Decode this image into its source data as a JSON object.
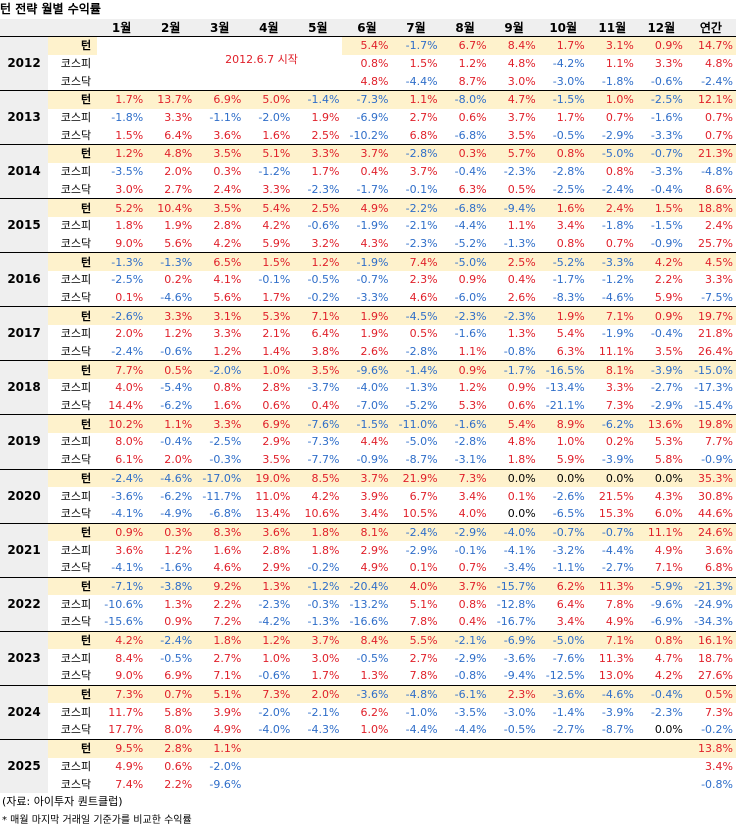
{
  "title": "턴 전략 월별 수익률",
  "headers": [
    "",
    "",
    "1월",
    "2월",
    "3월",
    "4월",
    "5월",
    "6월",
    "7월",
    "8월",
    "9월",
    "10월",
    "11월",
    "12월",
    "연간"
  ],
  "note": "2012.6.7 시작",
  "groups": [
    {
      "year": "2012",
      "rows": [
        {
          "label": "턴",
          "values": [
            "",
            "",
            "",
            "",
            "",
            "5.4%",
            "-1.7%",
            "6.7%",
            "8.4%",
            "1.7%",
            "3.1%",
            "0.9%",
            "14.7%"
          ]
        },
        {
          "label": "코스피",
          "values": [
            "",
            "",
            "",
            "",
            "",
            "0.8%",
            "1.5%",
            "1.2%",
            "4.8%",
            "-4.2%",
            "1.1%",
            "3.3%",
            "4.8%"
          ]
        },
        {
          "label": "코스닥",
          "values": [
            "",
            "",
            "",
            "",
            "",
            "4.8%",
            "-4.4%",
            "8.7%",
            "3.0%",
            "-3.0%",
            "-1.8%",
            "-0.6%",
            "-2.4%"
          ]
        }
      ]
    },
    {
      "year": "2013",
      "rows": [
        {
          "label": "턴",
          "values": [
            "1.7%",
            "13.7%",
            "6.9%",
            "5.0%",
            "-1.4%",
            "-7.3%",
            "1.1%",
            "-8.0%",
            "4.7%",
            "-1.5%",
            "1.0%",
            "-2.5%",
            "12.1%"
          ]
        },
        {
          "label": "코스피",
          "values": [
            "-1.8%",
            "3.3%",
            "-1.1%",
            "-2.0%",
            "1.9%",
            "-6.9%",
            "2.7%",
            "0.6%",
            "3.7%",
            "1.7%",
            "0.7%",
            "-1.6%",
            "0.7%"
          ]
        },
        {
          "label": "코스닥",
          "values": [
            "1.5%",
            "6.4%",
            "3.6%",
            "1.6%",
            "2.5%",
            "-10.2%",
            "6.8%",
            "-6.8%",
            "3.5%",
            "-0.5%",
            "-2.9%",
            "-3.3%",
            "0.7%"
          ]
        }
      ]
    },
    {
      "year": "2014",
      "rows": [
        {
          "label": "턴",
          "values": [
            "1.2%",
            "4.8%",
            "3.5%",
            "5.1%",
            "3.3%",
            "3.7%",
            "-2.8%",
            "0.3%",
            "5.7%",
            "0.8%",
            "-5.0%",
            "-0.7%",
            "21.3%"
          ]
        },
        {
          "label": "코스피",
          "values": [
            "-3.5%",
            "2.0%",
            "0.3%",
            "-1.2%",
            "1.7%",
            "0.4%",
            "3.7%",
            "-0.4%",
            "-2.3%",
            "-2.8%",
            "0.8%",
            "-3.3%",
            "-4.8%"
          ]
        },
        {
          "label": "코스닥",
          "values": [
            "3.0%",
            "2.7%",
            "2.4%",
            "3.3%",
            "-2.3%",
            "-1.7%",
            "-0.1%",
            "6.3%",
            "0.5%",
            "-2.5%",
            "-2.4%",
            "-0.4%",
            "8.6%"
          ]
        }
      ]
    },
    {
      "year": "2015",
      "rows": [
        {
          "label": "턴",
          "values": [
            "5.2%",
            "10.4%",
            "3.5%",
            "5.4%",
            "2.5%",
            "4.9%",
            "-2.2%",
            "-6.8%",
            "-9.4%",
            "1.6%",
            "2.4%",
            "1.5%",
            "18.8%"
          ]
        },
        {
          "label": "코스피",
          "values": [
            "1.8%",
            "1.9%",
            "2.8%",
            "4.2%",
            "-0.6%",
            "-1.9%",
            "-2.1%",
            "-4.4%",
            "1.1%",
            "3.4%",
            "-1.8%",
            "-1.5%",
            "2.4%"
          ]
        },
        {
          "label": "코스닥",
          "values": [
            "9.0%",
            "5.6%",
            "4.2%",
            "5.9%",
            "3.2%",
            "4.3%",
            "-2.3%",
            "-5.2%",
            "-1.3%",
            "0.8%",
            "0.7%",
            "-0.9%",
            "25.7%"
          ]
        }
      ]
    },
    {
      "year": "2016",
      "rows": [
        {
          "label": "턴",
          "values": [
            "-1.3%",
            "-1.3%",
            "6.5%",
            "1.5%",
            "1.2%",
            "-1.9%",
            "7.4%",
            "-5.0%",
            "2.5%",
            "-5.2%",
            "-3.3%",
            "4.2%",
            "4.5%"
          ]
        },
        {
          "label": "코스피",
          "values": [
            "-2.5%",
            "0.2%",
            "4.1%",
            "-0.1%",
            "-0.5%",
            "-0.7%",
            "2.3%",
            "0.9%",
            "0.4%",
            "-1.7%",
            "-1.2%",
            "2.2%",
            "3.3%"
          ]
        },
        {
          "label": "코스닥",
          "values": [
            "0.1%",
            "-4.6%",
            "5.6%",
            "1.7%",
            "-0.2%",
            "-3.3%",
            "4.6%",
            "-6.0%",
            "2.6%",
            "-8.3%",
            "-4.6%",
            "5.9%",
            "-7.5%"
          ]
        }
      ]
    },
    {
      "year": "2017",
      "rows": [
        {
          "label": "턴",
          "values": [
            "-2.6%",
            "3.3%",
            "3.1%",
            "5.3%",
            "7.1%",
            "1.9%",
            "-4.5%",
            "-2.3%",
            "-2.3%",
            "1.9%",
            "7.1%",
            "0.9%",
            "19.7%"
          ]
        },
        {
          "label": "코스피",
          "values": [
            "2.0%",
            "1.2%",
            "3.3%",
            "2.1%",
            "6.4%",
            "1.9%",
            "0.5%",
            "-1.6%",
            "1.3%",
            "5.4%",
            "-1.9%",
            "-0.4%",
            "21.8%"
          ]
        },
        {
          "label": "코스닥",
          "values": [
            "-2.4%",
            "-0.6%",
            "1.2%",
            "1.4%",
            "3.8%",
            "2.6%",
            "-2.8%",
            "1.1%",
            "-0.8%",
            "6.3%",
            "11.1%",
            "3.5%",
            "26.4%"
          ]
        }
      ]
    },
    {
      "year": "2018",
      "rows": [
        {
          "label": "턴",
          "values": [
            "7.7%",
            "0.5%",
            "-2.0%",
            "1.0%",
            "3.5%",
            "-9.6%",
            "-1.4%",
            "0.9%",
            "-1.7%",
            "-16.5%",
            "8.1%",
            "-3.9%",
            "-15.0%"
          ]
        },
        {
          "label": "코스피",
          "values": [
            "4.0%",
            "-5.4%",
            "0.8%",
            "2.8%",
            "-3.7%",
            "-4.0%",
            "-1.3%",
            "1.2%",
            "0.9%",
            "-13.4%",
            "3.3%",
            "-2.7%",
            "-17.3%"
          ]
        },
        {
          "label": "코스닥",
          "values": [
            "14.4%",
            "-6.2%",
            "1.6%",
            "0.6%",
            "0.4%",
            "-7.0%",
            "-5.2%",
            "5.3%",
            "0.6%",
            "-21.1%",
            "7.3%",
            "-2.9%",
            "-15.4%"
          ]
        }
      ]
    },
    {
      "year": "2019",
      "rows": [
        {
          "label": "턴",
          "values": [
            "10.2%",
            "1.1%",
            "3.3%",
            "6.9%",
            "-7.6%",
            "-1.5%",
            "-11.0%",
            "-1.6%",
            "5.4%",
            "8.9%",
            "-6.2%",
            "13.6%",
            "19.8%"
          ]
        },
        {
          "label": "코스피",
          "values": [
            "8.0%",
            "-0.4%",
            "-2.5%",
            "2.9%",
            "-7.3%",
            "4.4%",
            "-5.0%",
            "-2.8%",
            "4.8%",
            "1.0%",
            "0.2%",
            "5.3%",
            "7.7%"
          ]
        },
        {
          "label": "코스닥",
          "values": [
            "6.1%",
            "2.0%",
            "-0.3%",
            "3.5%",
            "-7.7%",
            "-0.9%",
            "-8.7%",
            "-3.1%",
            "1.8%",
            "5.9%",
            "-3.9%",
            "5.8%",
            "-0.9%"
          ]
        }
      ]
    },
    {
      "year": "2020",
      "rows": [
        {
          "label": "턴",
          "values": [
            "-2.4%",
            "-4.6%",
            "-17.0%",
            "19.0%",
            "8.5%",
            "3.7%",
            "21.9%",
            "7.3%",
            "0.0%",
            "0.0%",
            "0.0%",
            "0.0%",
            "35.3%"
          ]
        },
        {
          "label": "코스피",
          "values": [
            "-3.6%",
            "-6.2%",
            "-11.7%",
            "11.0%",
            "4.2%",
            "3.9%",
            "6.7%",
            "3.4%",
            "0.1%",
            "-2.6%",
            "21.5%",
            "4.3%",
            "30.8%"
          ]
        },
        {
          "label": "코스닥",
          "values": [
            "-4.1%",
            "-4.9%",
            "-6.8%",
            "13.4%",
            "10.6%",
            "3.4%",
            "10.5%",
            "4.0%",
            "0.0%",
            "-6.5%",
            "15.3%",
            "6.0%",
            "44.6%"
          ]
        }
      ]
    },
    {
      "year": "2021",
      "rows": [
        {
          "label": "턴",
          "values": [
            "0.9%",
            "0.3%",
            "8.3%",
            "3.6%",
            "1.8%",
            "8.1%",
            "-2.4%",
            "-2.9%",
            "-4.0%",
            "-0.7%",
            "-0.7%",
            "11.1%",
            "24.6%"
          ]
        },
        {
          "label": "코스피",
          "values": [
            "3.6%",
            "1.2%",
            "1.6%",
            "2.8%",
            "1.8%",
            "2.9%",
            "-2.9%",
            "-0.1%",
            "-4.1%",
            "-3.2%",
            "-4.4%",
            "4.9%",
            "3.6%"
          ]
        },
        {
          "label": "코스닥",
          "values": [
            "-4.1%",
            "-1.6%",
            "4.6%",
            "2.9%",
            "-0.2%",
            "4.9%",
            "0.1%",
            "0.7%",
            "-3.4%",
            "-1.1%",
            "-2.7%",
            "7.1%",
            "6.8%"
          ]
        }
      ]
    },
    {
      "year": "2022",
      "rows": [
        {
          "label": "턴",
          "values": [
            "-7.1%",
            "-3.8%",
            "9.2%",
            "1.3%",
            "-1.2%",
            "-20.4%",
            "4.0%",
            "3.7%",
            "-15.7%",
            "6.2%",
            "11.3%",
            "-5.9%",
            "-21.3%"
          ]
        },
        {
          "label": "코스피",
          "values": [
            "-10.6%",
            "1.3%",
            "2.2%",
            "-2.3%",
            "-0.3%",
            "-13.2%",
            "5.1%",
            "0.8%",
            "-12.8%",
            "6.4%",
            "7.8%",
            "-9.6%",
            "-24.9%"
          ]
        },
        {
          "label": "코스닥",
          "values": [
            "-15.6%",
            "0.9%",
            "7.2%",
            "-4.2%",
            "-1.3%",
            "-16.6%",
            "7.8%",
            "0.4%",
            "-16.7%",
            "3.4%",
            "4.9%",
            "-6.9%",
            "-34.3%"
          ]
        }
      ]
    },
    {
      "year": "2023",
      "rows": [
        {
          "label": "턴",
          "values": [
            "4.2%",
            "-2.4%",
            "1.8%",
            "1.2%",
            "3.7%",
            "8.4%",
            "5.5%",
            "-2.1%",
            "-6.9%",
            "-5.0%",
            "7.1%",
            "0.8%",
            "16.1%"
          ]
        },
        {
          "label": "코스피",
          "values": [
            "8.4%",
            "-0.5%",
            "2.7%",
            "1.0%",
            "3.0%",
            "-0.5%",
            "2.7%",
            "-2.9%",
            "-3.6%",
            "-7.6%",
            "11.3%",
            "4.7%",
            "18.7%"
          ]
        },
        {
          "label": "코스닥",
          "values": [
            "9.0%",
            "6.9%",
            "7.1%",
            "-0.6%",
            "1.7%",
            "1.3%",
            "7.8%",
            "-0.8%",
            "-9.4%",
            "-12.5%",
            "13.0%",
            "4.2%",
            "27.6%"
          ]
        }
      ]
    },
    {
      "year": "2024",
      "rows": [
        {
          "label": "턴",
          "values": [
            "7.3%",
            "0.7%",
            "5.1%",
            "7.3%",
            "2.0%",
            "-3.6%",
            "-4.8%",
            "-6.1%",
            "2.3%",
            "-3.6%",
            "-4.6%",
            "-0.4%",
            "0.5%"
          ]
        },
        {
          "label": "코스피",
          "values": [
            "11.7%",
            "5.8%",
            "3.9%",
            "-2.0%",
            "-2.1%",
            "6.2%",
            "-1.0%",
            "-3.5%",
            "-3.0%",
            "-1.4%",
            "-3.9%",
            "-2.3%",
            "7.3%"
          ]
        },
        {
          "label": "코스닥",
          "values": [
            "17.7%",
            "8.0%",
            "4.9%",
            "-4.0%",
            "-4.3%",
            "1.0%",
            "-4.4%",
            "-4.4%",
            "-0.5%",
            "-2.7%",
            "-8.7%",
            "0.0%",
            "-0.2%"
          ]
        }
      ]
    },
    {
      "year": "2025",
      "rows": [
        {
          "label": "턴",
          "values": [
            "9.5%",
            "2.8%",
            "1.1%",
            "",
            "",
            "",
            "",
            "",
            "",
            "",
            "",
            "",
            "13.8%"
          ]
        },
        {
          "label": "코스피",
          "values": [
            "4.9%",
            "0.6%",
            "-2.0%",
            "",
            "",
            "",
            "",
            "",
            "",
            "",
            "",
            "",
            "3.4%"
          ]
        },
        {
          "label": "코스닥",
          "values": [
            "7.4%",
            "2.2%",
            "-9.6%",
            "",
            "",
            "",
            "",
            "",
            "",
            "",
            "",
            "",
            "-0.8%"
          ]
        }
      ]
    }
  ],
  "source": "(자료: 아이투자 퀀트클럽)",
  "footnote": "* 매월 마지막 거래일 기준가를 비교한 수익률",
  "colors": {
    "positive": "#e0202a",
    "negative": "#2f6ec9",
    "highlight": "#fef2cc",
    "header": "#efefef"
  }
}
